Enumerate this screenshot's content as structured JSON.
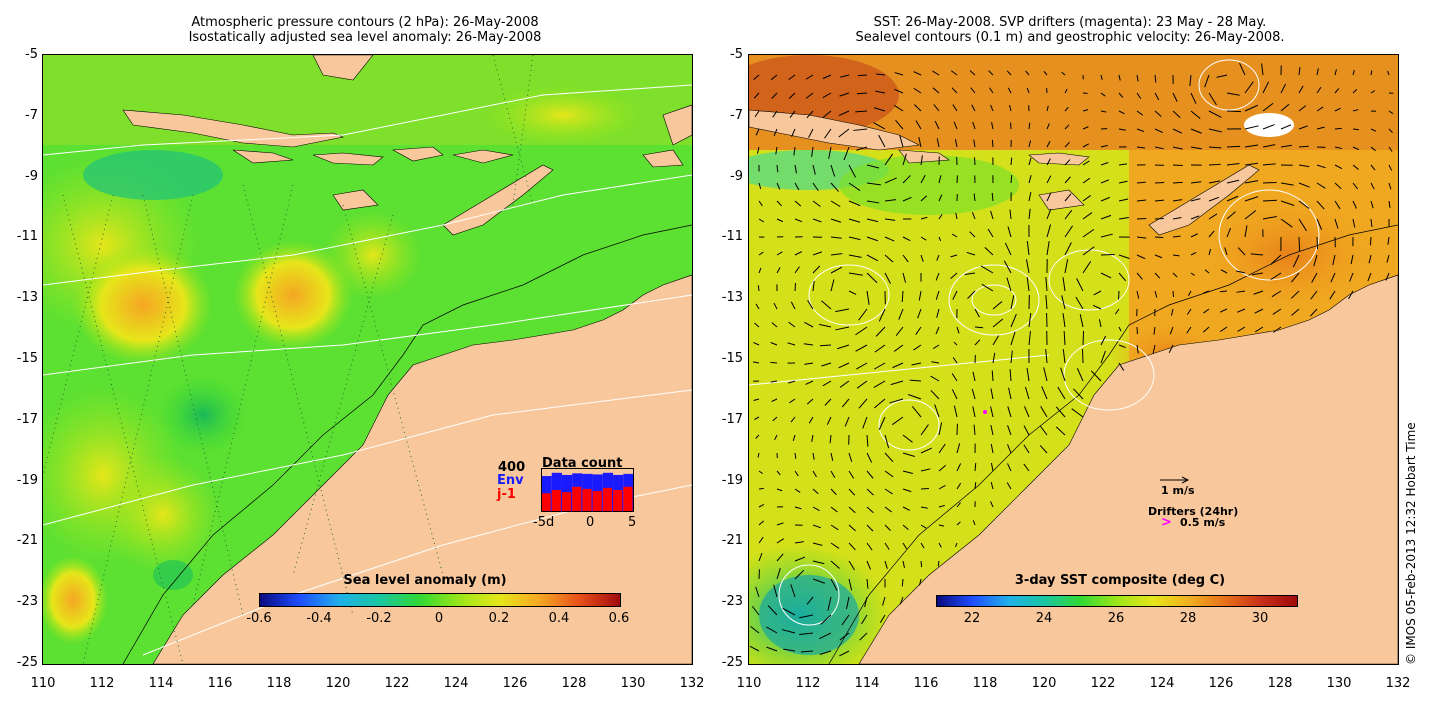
{
  "left": {
    "title_line1": "Atmospheric pressure contours (2 hPa): 26-May-2008",
    "title_line2": "Isostatically adjusted sea level anomaly: 26-May-2008",
    "colorbar": {
      "label": "Sea level anomaly (m)",
      "ticks": [
        "-0.6",
        "-0.4",
        "-0.2",
        "0",
        "0.2",
        "0.4",
        "0.6"
      ],
      "range": [
        -0.6,
        0.6
      ]
    },
    "inset": {
      "title": "Data count",
      "max_label": "400",
      "env_label": "Env",
      "j1_label": "j-1",
      "x_ticks": [
        "-5d",
        "0",
        "5"
      ],
      "env_color": "#1a1aff",
      "j1_color": "#ff0000",
      "env_counts": [
        330,
        360,
        340,
        355,
        350,
        345,
        360,
        340,
        350
      ],
      "j1_counts": [
        170,
        200,
        180,
        230,
        210,
        190,
        220,
        200,
        230
      ],
      "count_max": 400
    }
  },
  "right": {
    "title_line1": "SST: 26-May-2008. SVP drifters (magenta): 23 May - 28 May.",
    "title_line2": "Sealevel contours (0.1 m) and geostrophic velocity: 26-May-2008.",
    "colorbar": {
      "label": "3-day SST composite (deg C)",
      "ticks": [
        "22",
        "24",
        "26",
        "28",
        "30"
      ],
      "range": [
        21,
        31
      ]
    },
    "legend": {
      "velocity_label": "1 m/s",
      "drifters_label": "Drifters (24hr)",
      "drifter_speed": "0.5 m/s",
      "drifter_marker": ">"
    }
  },
  "axes": {
    "y_ticks": [
      "-5",
      "-7",
      "-9",
      "-11",
      "-13",
      "-15",
      "-17",
      "-19",
      "-21",
      "-23",
      "-25"
    ],
    "x_ticks": [
      "110",
      "112",
      "114",
      "116",
      "118",
      "120",
      "122",
      "124",
      "126",
      "128",
      "130",
      "132"
    ],
    "lon_range": [
      110,
      132
    ],
    "lat_range": [
      -25,
      -5
    ]
  },
  "credit": "© IMOS 05-Feb-2013 12:32 Hobart Time",
  "colors": {
    "land": "#f8c89c",
    "ocean_green": "#33d933",
    "ocean_yellow": "#e6e61a",
    "ocean_orange": "#f5a623"
  }
}
